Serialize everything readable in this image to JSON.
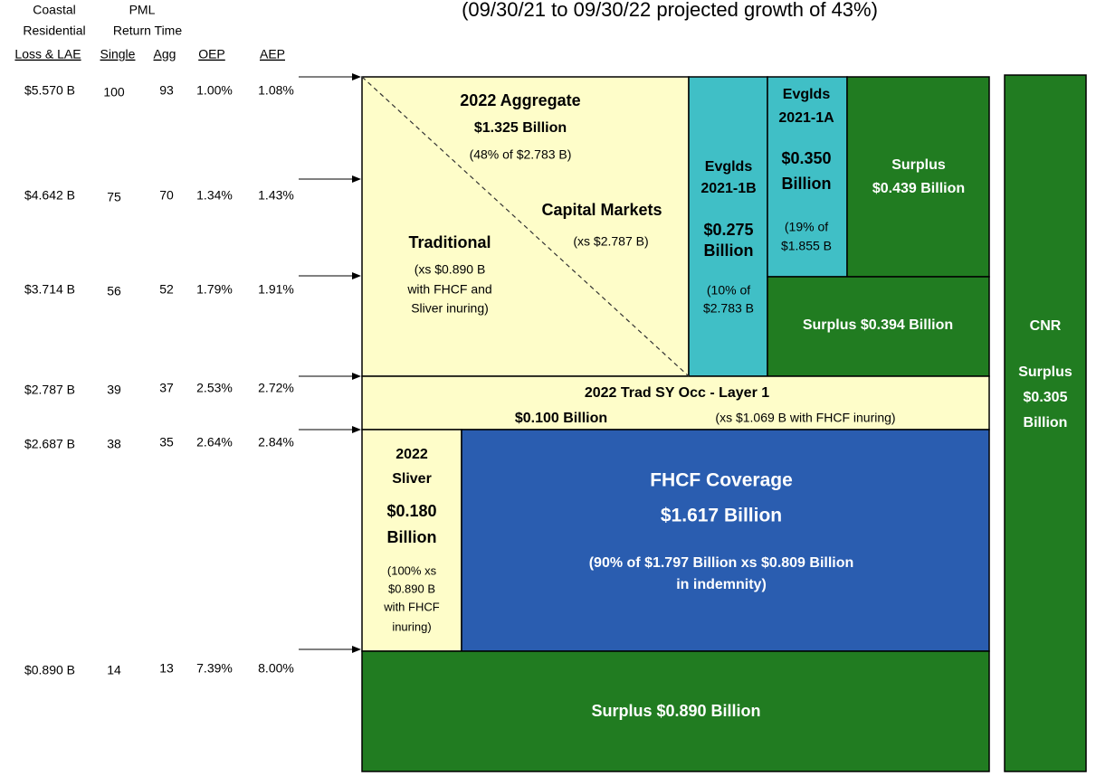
{
  "header": {
    "subtitle": "(09/30/21 to 09/30/22 projected growth of 43%)"
  },
  "table": {
    "header": [
      [
        "Coastal",
        "PML"
      ],
      [
        "Residential",
        "Return Time"
      ],
      [
        "Loss & LAE",
        "Single",
        "Agg",
        "OEP",
        "AEP"
      ]
    ],
    "rows": [
      [
        "$5.570 B",
        "100",
        "93",
        "1.00%",
        "1.08%"
      ],
      [
        "$4.642 B",
        "75",
        "70",
        "1.34%",
        "1.43%"
      ],
      [
        "$3.714 B",
        "56",
        "52",
        "1.79%",
        "1.91%"
      ],
      [
        "$2.787 B",
        "39",
        "37",
        "2.53%",
        "2.72%"
      ],
      [
        "$2.687 B",
        "38",
        "35",
        "2.64%",
        "2.84%"
      ],
      [
        "$0.890 B",
        "14",
        "13",
        "7.39%",
        "8.00%"
      ]
    ]
  },
  "blocks": [
    {
      "lines": [
        "2022 Aggregate",
        "$1.325 Billion",
        "(48% of $2.783 B)",
        "Capital Markets",
        "(xs $2.787 B)",
        "Traditional",
        "(xs $0.890 B",
        "with FHCF and",
        "Sliver inuring)"
      ]
    },
    {
      "lines": [
        "Evglds",
        "2021-1B",
        "$0.275",
        "Billion",
        "(10% of",
        "$2.783 B"
      ]
    },
    {
      "lines": [
        "Evglds",
        "2021-1A",
        "$0.350",
        "Billion",
        "(19% of",
        "$1.855 B"
      ]
    },
    {
      "lines": [
        "Surplus",
        "$0.439 Billion"
      ]
    },
    {
      "lines": [
        "Surplus $0.394 Billion"
      ]
    },
    {
      "lines": [
        "2022 Trad SY Occ - Layer 1",
        "$0.100 Billion",
        "(xs $1.069 B with FHCF inuring)"
      ]
    },
    {
      "lines": [
        "2022",
        "Sliver",
        "$0.180",
        "Billion",
        "(100% xs",
        "$0.890 B",
        "with FHCF",
        "inuring)"
      ]
    },
    {
      "lines": [
        "FHCF Coverage",
        "$1.617 Billion",
        "(90% of $1.797 Billion xs $0.809 Billion",
        "in indemnity)"
      ]
    },
    {
      "lines": [
        "Surplus $0.890 Billion"
      ]
    },
    {
      "lines": [
        "CNR",
        "Surplus",
        "$0.305",
        "Billion"
      ]
    }
  ]
}
